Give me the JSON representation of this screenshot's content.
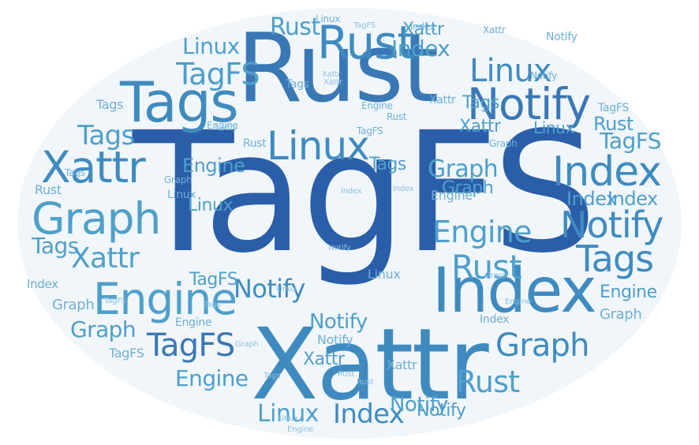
{
  "colors": {
    "background": "#ffffff",
    "cloud_fill": "#f1f6fa",
    "palette": [
      "#2a5ea9",
      "#3a78b5",
      "#3f8bc0",
      "#4f9fcb",
      "#6eb0d6",
      "#8cc2de"
    ]
  },
  "words": [
    {
      "text": "TagFS",
      "color": "#2a5ea9"
    },
    {
      "text": "Rust",
      "color": "#3a78b5"
    },
    {
      "text": "Xattr",
      "color": "#3f8bc0"
    },
    {
      "text": "Index",
      "color": "#3f8bc0"
    },
    {
      "text": "Tags",
      "color": "#3f8bc0"
    },
    {
      "text": "Notify",
      "color": "#3a78b5"
    },
    {
      "text": "Linux",
      "color": "#3f8bc0"
    },
    {
      "text": "Graph",
      "color": "#4f9fcb"
    },
    {
      "text": "Engine",
      "color": "#4f9fcb"
    },
    {
      "text": "Xattr",
      "color": "#3f8bc0"
    },
    {
      "text": "TagFS",
      "color": "#3a78b5"
    },
    {
      "text": "Rust",
      "color": "#3f8bc0"
    },
    {
      "text": "Index",
      "color": "#3f8bc0"
    },
    {
      "text": "Notify",
      "color": "#3f8bc0"
    },
    {
      "text": "Tags",
      "color": "#3f8bc0"
    },
    {
      "text": "Linux",
      "color": "#3f8bc0"
    },
    {
      "text": "Graph",
      "color": "#3f8bc0"
    },
    {
      "text": "Engine",
      "color": "#4f9fcb"
    },
    {
      "text": "Notify",
      "color": "#3f8bc0"
    },
    {
      "text": "Index",
      "color": "#3f8bc0"
    },
    {
      "text": "Xattr",
      "color": "#4f9fcb"
    },
    {
      "text": "Rust",
      "color": "#4f9fcb"
    },
    {
      "text": "Tags",
      "color": "#4f9fcb"
    },
    {
      "text": "TagFS",
      "color": "#4f9fcb"
    },
    {
      "text": "Linux",
      "color": "#4f9fcb"
    },
    {
      "text": "Graph",
      "color": "#4f9fcb"
    },
    {
      "text": "Engine",
      "color": "#4f9fcb"
    },
    {
      "text": "Index",
      "color": "#4f9fcb"
    },
    {
      "text": "Notify",
      "color": "#4f9fcb"
    },
    {
      "text": "Xattr",
      "color": "#4f9fcb"
    },
    {
      "text": "Rust",
      "color": "#4f9fcb"
    },
    {
      "text": "Tags",
      "color": "#4f9fcb"
    },
    {
      "text": "Linux",
      "color": "#4f9fcb"
    },
    {
      "text": "Graph",
      "color": "#4f9fcb"
    },
    {
      "text": "Engine",
      "color": "#4f9fcb"
    },
    {
      "text": "TagFS",
      "color": "#4f9fcb"
    },
    {
      "text": "Index",
      "color": "#4f9fcb"
    },
    {
      "text": "Notify",
      "color": "#4f9fcb"
    },
    {
      "text": "Xattr",
      "color": "#4f9fcb"
    },
    {
      "text": "Rust",
      "color": "#4f9fcb"
    },
    {
      "text": "Tags",
      "color": "#4f9fcb"
    },
    {
      "text": "Linux",
      "color": "#4f9fcb"
    },
    {
      "text": "Graph",
      "color": "#4f9fcb"
    },
    {
      "text": "Engine",
      "color": "#4f9fcb"
    },
    {
      "text": "TagFS",
      "color": "#4f9fcb"
    },
    {
      "text": "Index",
      "color": "#4f9fcb"
    },
    {
      "text": "Notify",
      "color": "#4f9fcb"
    },
    {
      "text": "Xattr",
      "color": "#4f9fcb"
    },
    {
      "text": "Rust",
      "color": "#4f9fcb"
    },
    {
      "text": "Tags",
      "color": "#4f9fcb"
    },
    {
      "text": "Linux",
      "color": "#4f9fcb"
    },
    {
      "text": "Graph",
      "color": "#6eb0d6"
    },
    {
      "text": "Engine",
      "color": "#6eb0d6"
    },
    {
      "text": "TagFS",
      "color": "#6eb0d6"
    },
    {
      "text": "Index",
      "color": "#6eb0d6"
    },
    {
      "text": "Notify",
      "color": "#6eb0d6"
    },
    {
      "text": "Xattr",
      "color": "#6eb0d6"
    },
    {
      "text": "Rust",
      "color": "#6eb0d6"
    },
    {
      "text": "Tags",
      "color": "#6eb0d6"
    },
    {
      "text": "Linux",
      "color": "#6eb0d6"
    },
    {
      "text": "Graph",
      "color": "#6eb0d6"
    },
    {
      "text": "Engine",
      "color": "#6eb0d6"
    },
    {
      "text": "TagFS",
      "color": "#6eb0d6"
    },
    {
      "text": "Index",
      "color": "#6eb0d6"
    },
    {
      "text": "Notify",
      "color": "#6eb0d6"
    },
    {
      "text": "Xattr",
      "color": "#6eb0d6"
    },
    {
      "text": "Rust",
      "color": "#6eb0d6"
    },
    {
      "text": "Tags",
      "color": "#6eb0d6"
    },
    {
      "text": "Linux",
      "color": "#6eb0d6"
    },
    {
      "text": "Graph",
      "color": "#6eb0d6"
    },
    {
      "text": "Engine",
      "color": "#6eb0d6"
    },
    {
      "text": "TagFS",
      "color": "#6eb0d6"
    },
    {
      "text": "Index",
      "color": "#6eb0d6"
    },
    {
      "text": "Notify",
      "color": "#6eb0d6"
    },
    {
      "text": "Xattr",
      "color": "#6eb0d6"
    },
    {
      "text": "Rust",
      "color": "#6eb0d6"
    },
    {
      "text": "Tags",
      "color": "#6eb0d6"
    },
    {
      "text": "Linux",
      "color": "#6eb0d6"
    },
    {
      "text": "Graph",
      "color": "#6eb0d6"
    },
    {
      "text": "Engine",
      "color": "#6eb0d6"
    },
    {
      "text": "TagFS",
      "color": "#8cc2de"
    },
    {
      "text": "Index",
      "color": "#8cc2de"
    },
    {
      "text": "Notify",
      "color": "#8cc2de"
    },
    {
      "text": "Xattr",
      "color": "#8cc2de"
    },
    {
      "text": "Rust",
      "color": "#8cc2de"
    },
    {
      "text": "Tags",
      "color": "#8cc2de"
    },
    {
      "text": "Linux",
      "color": "#8cc2de"
    },
    {
      "text": "Graph",
      "color": "#8cc2de"
    },
    {
      "text": "Engine",
      "color": "#8cc2de"
    },
    {
      "text": "TagFS",
      "color": "#8cc2de"
    },
    {
      "text": "Index",
      "color": "#8cc2de"
    },
    {
      "text": "Notify",
      "color": "#8cc2de"
    },
    {
      "text": "Xattr",
      "color": "#8cc2de"
    },
    {
      "text": "Rust",
      "color": "#8cc2de"
    },
    {
      "text": "Tags",
      "color": "#8cc2de"
    },
    {
      "text": "Linux",
      "color": "#8cc2de"
    },
    {
      "text": "Graph",
      "color": "#8cc2de"
    },
    {
      "text": "Engine",
      "color": "#8cc2de"
    }
  ]
}
